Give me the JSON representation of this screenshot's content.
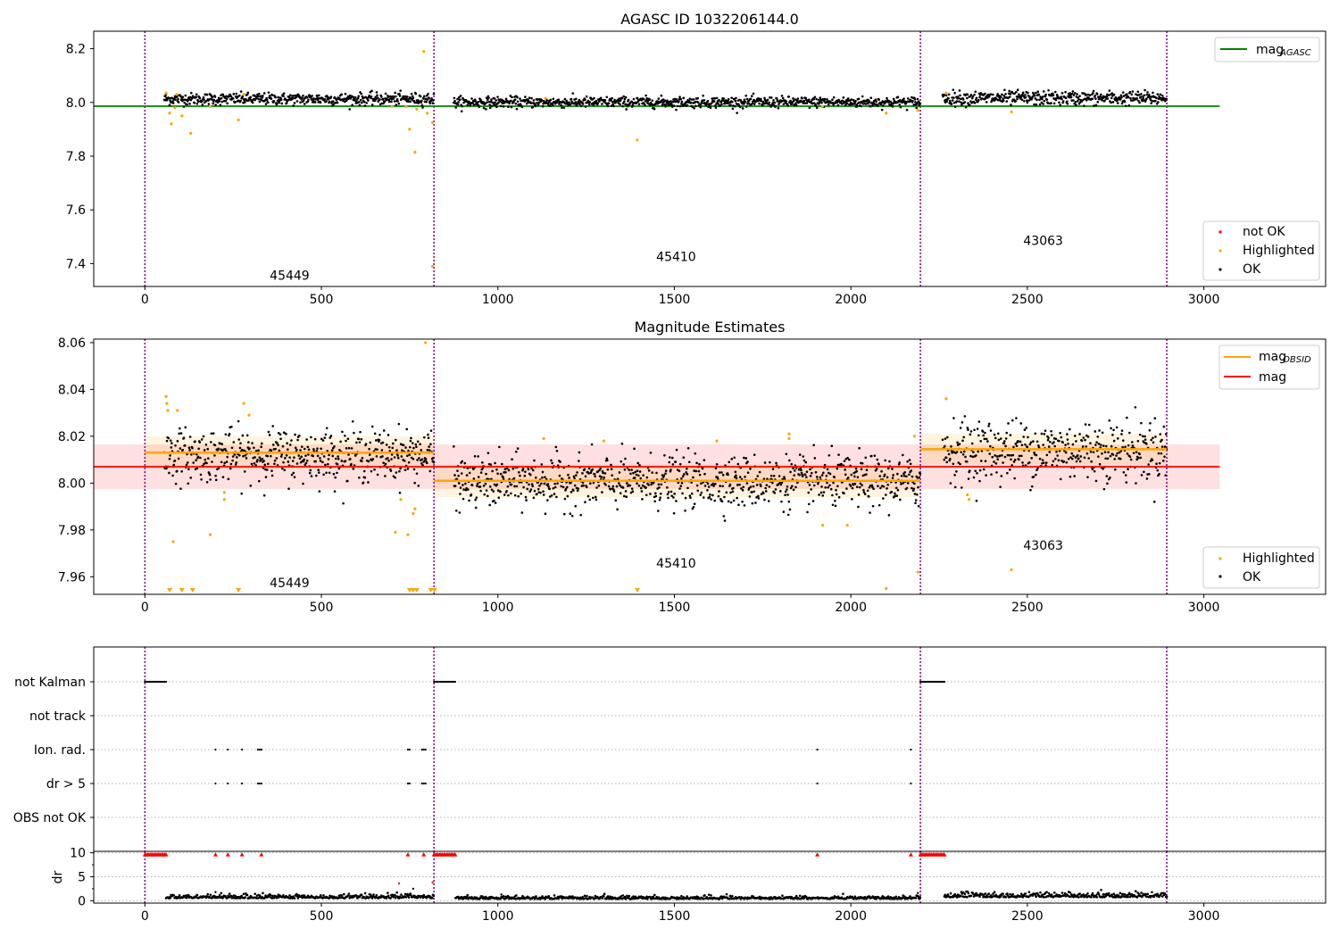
{
  "chart_data": [
    {
      "type": "scatter",
      "title": "AGASC ID 1032206144.0",
      "xlim": [
        -145,
        3345
      ],
      "ylim": [
        7.315,
        8.265
      ],
      "x_ticks": [
        0,
        500,
        1000,
        1500,
        2000,
        2500,
        3000
      ],
      "y_ticks": [
        7.4,
        7.6,
        7.8,
        8.0,
        8.2
      ],
      "y_tick_labels": [
        "7.4",
        "7.6",
        "7.8",
        "8.0",
        "8.2"
      ],
      "obsid_boundaries": [
        0,
        819,
        2197,
        2895
      ],
      "obs_labels": [
        {
          "text": "45449",
          "x": 410,
          "y": 7.34
        },
        {
          "text": "45410",
          "x": 1505,
          "y": 7.41
        },
        {
          "text": "43063",
          "x": 2545,
          "y": 7.47
        }
      ],
      "mag_agasc": {
        "value": 7.986,
        "x_range": [
          -145,
          3045
        ],
        "color": "#008000"
      },
      "legend_line": {
        "label": "mag",
        "subscript": "AGASC"
      },
      "legend_points": [
        "not OK",
        "Highlighted",
        "OK"
      ],
      "ok_segments": [
        {
          "x_range": [
            55,
            819
          ],
          "mean": 8.013,
          "spread": 0.011
        },
        {
          "x_range": [
            875,
            2197
          ],
          "mean": 8.001,
          "spread": 0.01
        },
        {
          "x_range": [
            2260,
            2895
          ],
          "mean": 8.016,
          "spread": 0.013
        }
      ],
      "highlighted_points": [
        {
          "x": 60,
          "y": 8.035
        },
        {
          "x": 70,
          "y": 7.96
        },
        {
          "x": 75,
          "y": 7.92
        },
        {
          "x": 85,
          "y": 7.98
        },
        {
          "x": 90,
          "y": 8.03
        },
        {
          "x": 105,
          "y": 7.95
        },
        {
          "x": 130,
          "y": 7.885
        },
        {
          "x": 185,
          "y": 7.985
        },
        {
          "x": 265,
          "y": 7.935
        },
        {
          "x": 280,
          "y": 8.03
        },
        {
          "x": 700,
          "y": 7.985
        },
        {
          "x": 740,
          "y": 7.985
        },
        {
          "x": 750,
          "y": 7.9
        },
        {
          "x": 765,
          "y": 7.815
        },
        {
          "x": 770,
          "y": 7.975
        },
        {
          "x": 790,
          "y": 8.19
        },
        {
          "x": 800,
          "y": 7.96
        },
        {
          "x": 815,
          "y": 7.39
        },
        {
          "x": 815,
          "y": 7.925
        },
        {
          "x": 1135,
          "y": 8.015
        },
        {
          "x": 1395,
          "y": 7.86
        },
        {
          "x": 1920,
          "y": 7.985
        },
        {
          "x": 2100,
          "y": 7.96
        },
        {
          "x": 2190,
          "y": 7.97
        },
        {
          "x": 2270,
          "y": 8.035
        },
        {
          "x": 2455,
          "y": 7.965
        }
      ],
      "colors": {
        "ok": "#000000",
        "highlighted": "#ffa500",
        "not_ok": "#ff0000",
        "boundary": "#800080"
      }
    },
    {
      "type": "scatter",
      "title": "Magnitude Estimates",
      "xlim": [
        -145,
        3345
      ],
      "ylim": [
        7.9525,
        8.0615
      ],
      "x_ticks": [
        0,
        500,
        1000,
        1500,
        2000,
        2500,
        3000
      ],
      "y_ticks": [
        7.96,
        7.98,
        8.0,
        8.02,
        8.04,
        8.06
      ],
      "y_tick_labels": [
        "7.96",
        "7.98",
        "8.00",
        "8.02",
        "8.04",
        "8.06"
      ],
      "obsid_boundaries": [
        0,
        819,
        2197,
        2895
      ],
      "obs_labels": [
        {
          "text": "45449",
          "x": 410,
          "y": 7.9555
        },
        {
          "text": "45410",
          "x": 1505,
          "y": 7.964
        },
        {
          "text": "43063",
          "x": 2545,
          "y": 7.9715
        }
      ],
      "mag": {
        "value": 8.007,
        "band": [
          7.9975,
          8.0165
        ],
        "x_range": [
          -145,
          3045
        ],
        "color": "#ff0000"
      },
      "mag_obsid": [
        {
          "x_range": [
            0,
            819
          ],
          "value": 8.013,
          "band": [
            8.006,
            8.02
          ]
        },
        {
          "x_range": [
            819,
            2197
          ],
          "value": 8.001,
          "band": [
            7.994,
            8.008
          ]
        },
        {
          "x_range": [
            2197,
            2895
          ],
          "value": 8.0145,
          "band": [
            8.008,
            8.021
          ]
        }
      ],
      "legend_lines": [
        {
          "label": "mag",
          "subscript": "OBSID",
          "color": "#ffa500"
        },
        {
          "label": "mag",
          "subscript": "",
          "color": "#ff0000"
        }
      ],
      "legend_points": [
        "Highlighted",
        "OK"
      ],
      "ok_segments": [
        {
          "x_range": [
            55,
            819
          ],
          "mean": 8.012,
          "spread": 0.0055
        },
        {
          "x_range": [
            875,
            2197
          ],
          "mean": 8.0005,
          "spread": 0.0055
        },
        {
          "x_range": [
            2260,
            2895
          ],
          "mean": 8.014,
          "spread": 0.0065
        }
      ],
      "highlighted_points": [
        {
          "x": 60,
          "y": 8.037
        },
        {
          "x": 62,
          "y": 8.034
        },
        {
          "x": 65,
          "y": 8.031
        },
        {
          "x": 92,
          "y": 8.031
        },
        {
          "x": 80,
          "y": 7.975
        },
        {
          "x": 185,
          "y": 7.978
        },
        {
          "x": 225,
          "y": 7.996
        },
        {
          "x": 225,
          "y": 7.993
        },
        {
          "x": 280,
          "y": 8.034
        },
        {
          "x": 295,
          "y": 8.029
        },
        {
          "x": 710,
          "y": 7.979
        },
        {
          "x": 725,
          "y": 7.993
        },
        {
          "x": 745,
          "y": 7.978
        },
        {
          "x": 760,
          "y": 7.987
        },
        {
          "x": 765,
          "y": 7.989
        },
        {
          "x": 1130,
          "y": 8.019
        },
        {
          "x": 1300,
          "y": 8.018
        },
        {
          "x": 1620,
          "y": 8.018
        },
        {
          "x": 1825,
          "y": 8.021
        },
        {
          "x": 1825,
          "y": 8.019
        },
        {
          "x": 1920,
          "y": 7.982
        },
        {
          "x": 1990,
          "y": 7.982
        },
        {
          "x": 2100,
          "y": 7.955
        },
        {
          "x": 2180,
          "y": 8.02
        },
        {
          "x": 2190,
          "y": 7.962
        },
        {
          "x": 2270,
          "y": 8.036
        },
        {
          "x": 2330,
          "y": 7.995
        },
        {
          "x": 2335,
          "y": 7.993
        },
        {
          "x": 2455,
          "y": 7.963
        },
        {
          "x": 795,
          "y": 8.06
        }
      ],
      "clipped_points_x": [
        70,
        105,
        135,
        265,
        750,
        760,
        770,
        810,
        820,
        1395
      ],
      "colors": {
        "ok": "#000000",
        "highlighted": "#ffa500",
        "boundary": "#800080"
      }
    },
    {
      "type": "scatter",
      "title": "",
      "xlim": [
        -145,
        3345
      ],
      "category_rows": [
        "not Kalman",
        "not track",
        "Ion. rad.",
        "dr > 5",
        "OBS not OK"
      ],
      "flag_segments": {
        "not Kalman": [
          [
            0,
            60
          ],
          [
            819,
            880
          ],
          [
            2197,
            2265
          ]
        ],
        "not track": [],
        "Ion. rad.": [
          200,
          235,
          275,
          320,
          325,
          330,
          745,
          750,
          785,
          790,
          795,
          1905,
          2170
        ],
        "dr > 5": [
          200,
          235,
          275,
          320,
          325,
          330,
          745,
          750,
          785,
          790,
          795,
          1905,
          2170
        ],
        "OBS not OK": []
      },
      "obsid_boundaries": [
        0,
        819,
        2197,
        2895
      ]
    },
    {
      "type": "scatter",
      "title": "",
      "ylabel": "dr",
      "xlim": [
        -145,
        3345
      ],
      "ylim": [
        -0.5,
        10.3
      ],
      "x_ticks": [
        0,
        500,
        1000,
        1500,
        2000,
        2500,
        3000
      ],
      "y_ticks": [
        0,
        5,
        10
      ],
      "y_tick_labels": [
        "0",
        "5",
        "10"
      ],
      "clipped_x": [
        [
          0,
          60
        ],
        [
          819,
          880
        ],
        [
          2197,
          2265
        ]
      ],
      "clipped_single_x": [
        200,
        235,
        275,
        330,
        745,
        790,
        1905,
        2170
      ],
      "scattered_high": [
        {
          "x": 720,
          "y": 3.6
        },
        {
          "x": 760,
          "y": 2.5
        },
        {
          "x": 815,
          "y": 3.8
        },
        {
          "x": 200,
          "y": 1.8
        },
        {
          "x": 1010,
          "y": 1.3
        },
        {
          "x": 2190,
          "y": 1.6
        }
      ],
      "ok_segments": [
        {
          "x_range": [
            60,
            819
          ],
          "mean": 0.5,
          "spread": 0.4
        },
        {
          "x_range": [
            880,
            2197
          ],
          "mean": 0.35,
          "spread": 0.3
        },
        {
          "x_range": [
            2265,
            2895
          ],
          "mean": 0.7,
          "spread": 0.5
        }
      ],
      "obsid_boundaries": [
        0,
        819,
        2197,
        2895
      ]
    }
  ],
  "legends": {
    "top_line_label": "mag",
    "top_line_sub": "AGASC",
    "top_points": [
      "not OK",
      "Highlighted",
      "OK"
    ],
    "mid_line1_label": "mag",
    "mid_line1_sub": "OBSID",
    "mid_line2_label": "mag",
    "mid_points": [
      "Highlighted",
      "OK"
    ]
  }
}
